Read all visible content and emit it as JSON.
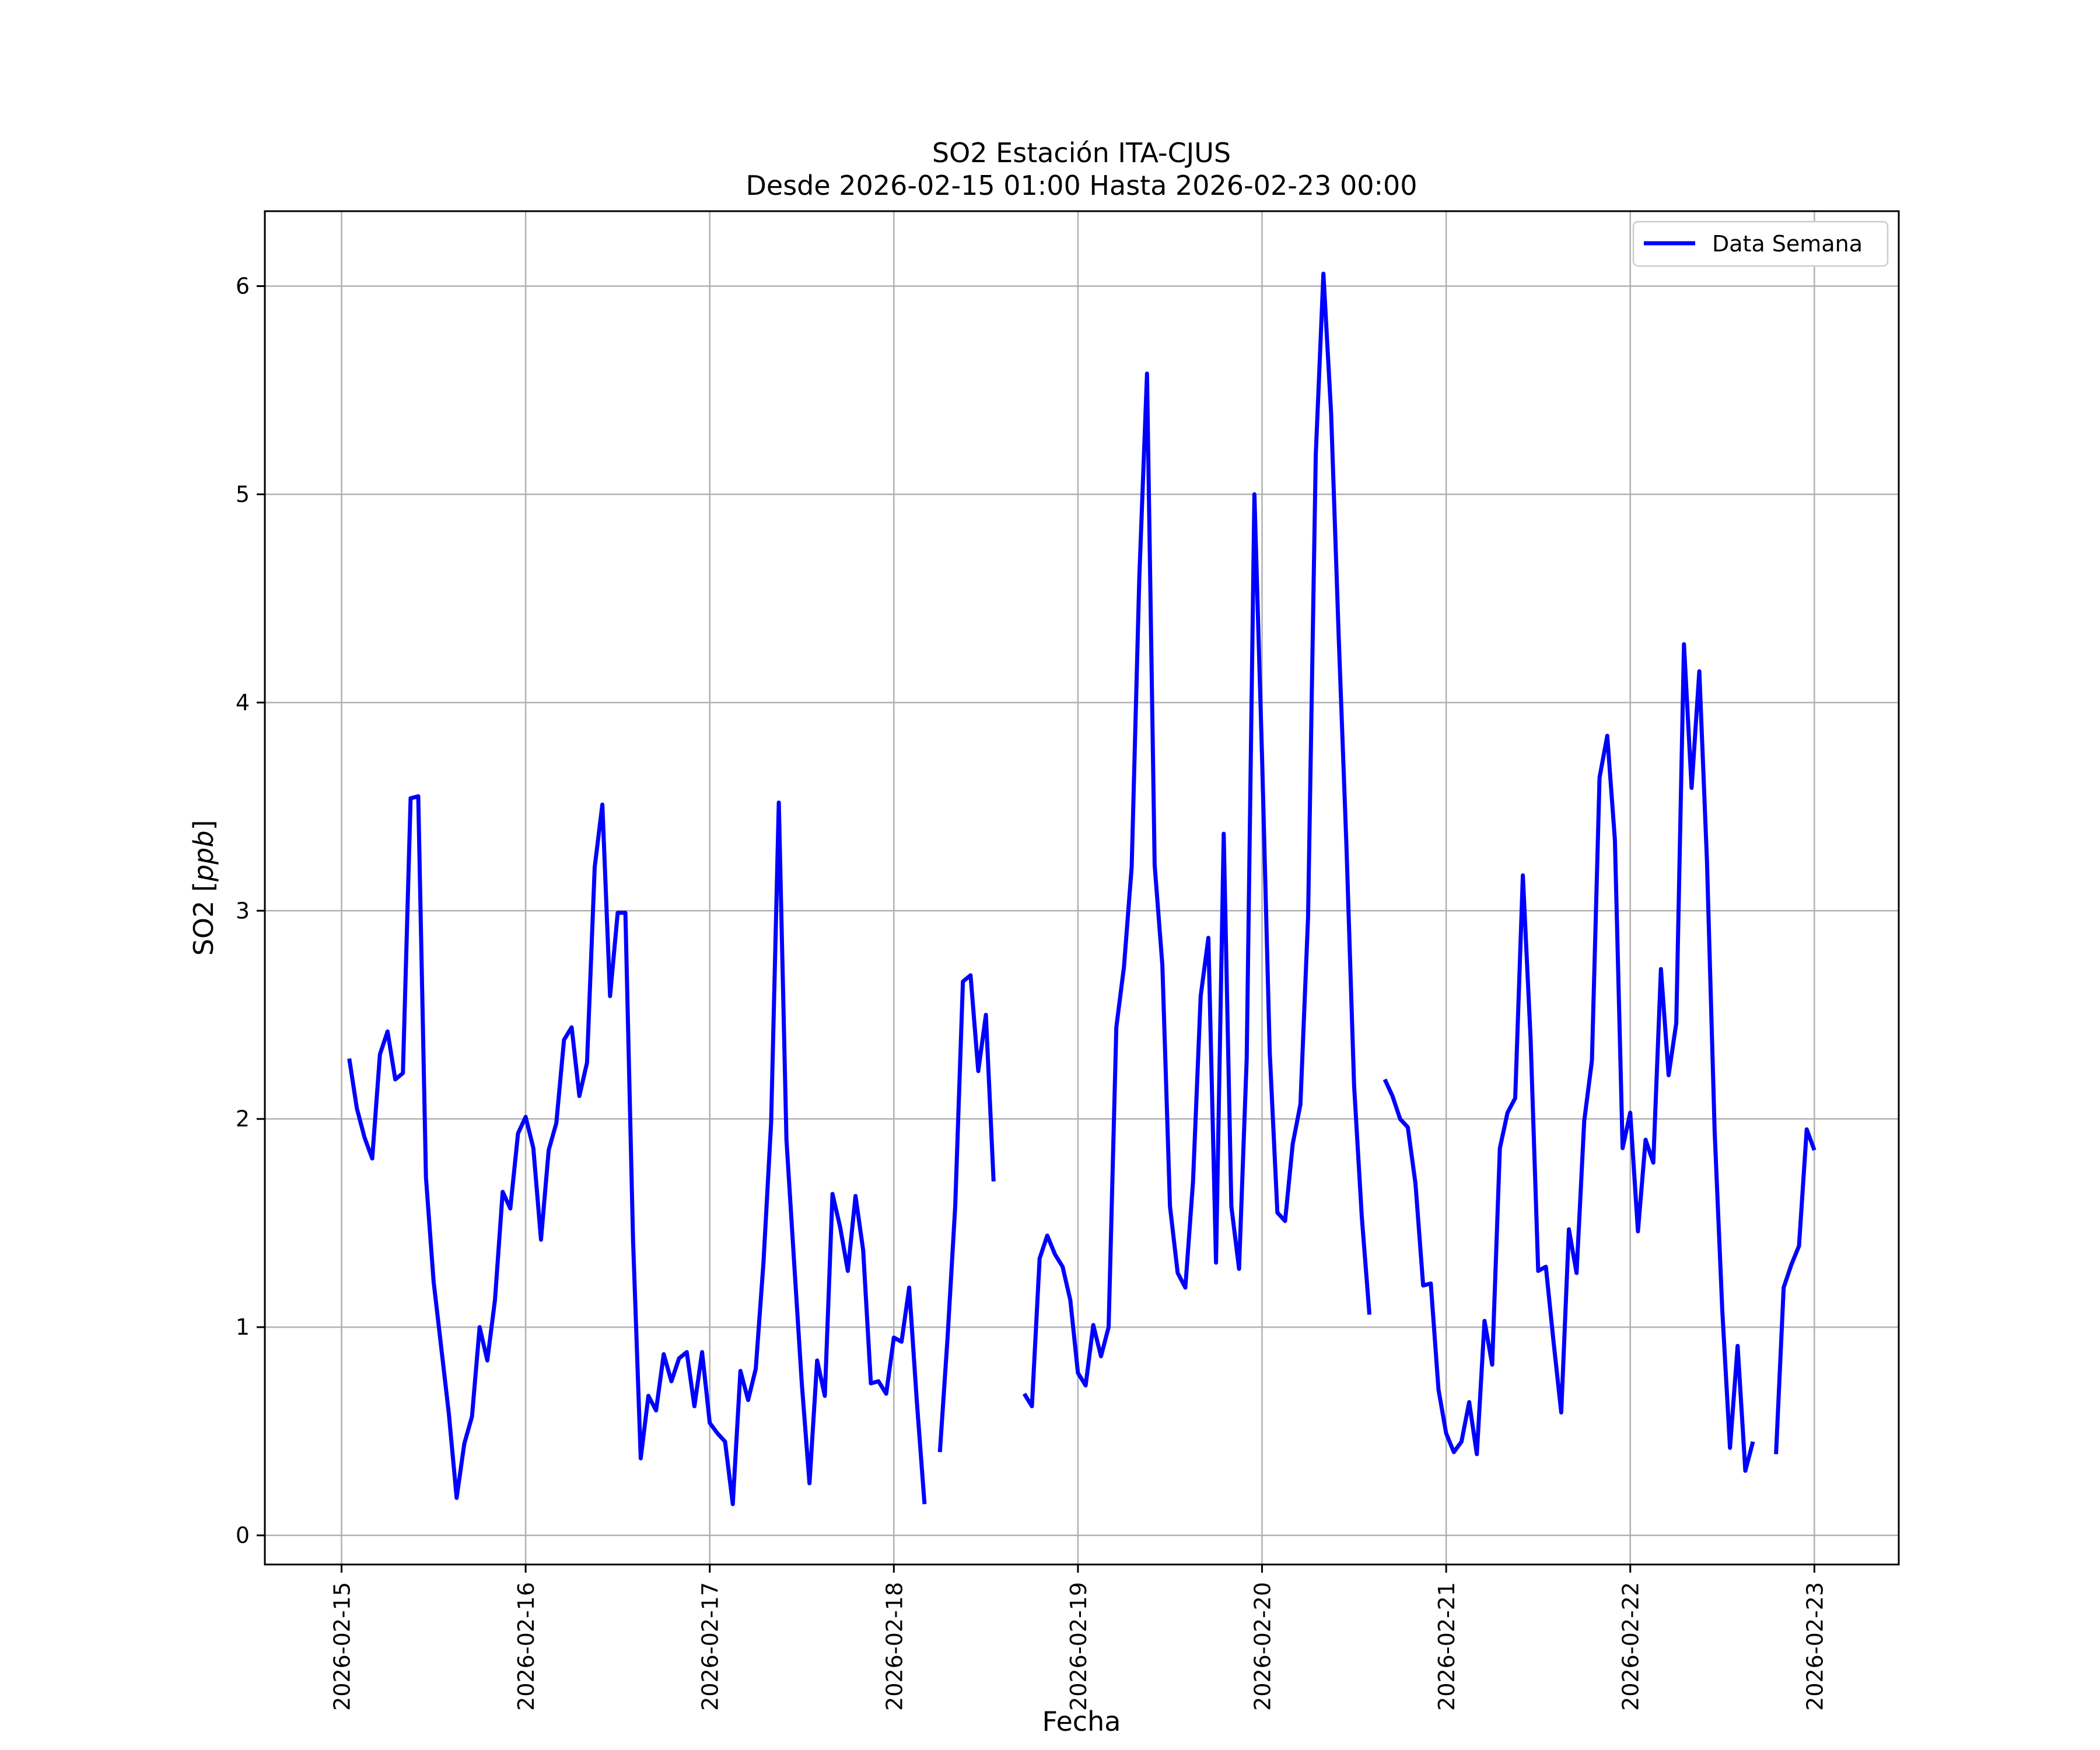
{
  "chart_data": {
    "type": "line",
    "title": "SO2 Estación ITA-CJUS",
    "subtitle": "Desde 2026-02-15 01:00 Hasta 2026-02-23 00:00",
    "xlabel": "Fecha",
    "ylabel": "SO2 [ppb]",
    "xlim": [
      "2026-02-14 14:00",
      "2026-02-23 11:00"
    ],
    "ylim": [
      -0.14,
      6.36
    ],
    "x_ticks": [
      "2026-02-15",
      "2026-02-16",
      "2026-02-17",
      "2026-02-18",
      "2026-02-19",
      "2026-02-20",
      "2026-02-21",
      "2026-02-22",
      "2026-02-23"
    ],
    "y_ticks": [
      0,
      1,
      2,
      3,
      4,
      5,
      6
    ],
    "grid": true,
    "legend": {
      "position": "top-right",
      "entries": [
        "Data Semana"
      ]
    },
    "colors": {
      "series": "#0000ff",
      "grid": "#b0b0b0",
      "frame": "#000000"
    },
    "series": [
      {
        "name": "Data Semana",
        "points": [
          [
            "2026-02-15 01:00",
            2.29
          ],
          [
            "2026-02-15 02:00",
            2.05
          ],
          [
            "2026-02-15 03:00",
            1.91
          ],
          [
            "2026-02-15 04:00",
            1.81
          ],
          [
            "2026-02-15 05:00",
            2.31
          ],
          [
            "2026-02-15 06:00",
            2.42
          ],
          [
            "2026-02-15 07:00",
            2.19
          ],
          [
            "2026-02-15 08:00",
            2.22
          ],
          [
            "2026-02-15 09:00",
            3.54
          ],
          [
            "2026-02-15 10:00",
            3.55
          ],
          [
            "2026-02-15 11:00",
            1.72
          ],
          [
            "2026-02-15 12:00",
            1.22
          ],
          [
            "2026-02-15 13:00",
            0.9
          ],
          [
            "2026-02-15 14:00",
            0.58
          ],
          [
            "2026-02-15 15:00",
            0.18
          ],
          [
            "2026-02-15 16:00",
            0.44
          ],
          [
            "2026-02-15 17:00",
            0.57
          ],
          [
            "2026-02-15 18:00",
            1.0
          ],
          [
            "2026-02-15 19:00",
            0.84
          ],
          [
            "2026-02-15 20:00",
            1.13
          ],
          [
            "2026-02-15 21:00",
            1.65
          ],
          [
            "2026-02-15 22:00",
            1.57
          ],
          [
            "2026-02-15 23:00",
            1.93
          ],
          [
            "2026-02-16 00:00",
            2.01
          ],
          [
            "2026-02-16 01:00",
            1.86
          ],
          [
            "2026-02-16 02:00",
            1.42
          ],
          [
            "2026-02-16 03:00",
            1.85
          ],
          [
            "2026-02-16 04:00",
            1.98
          ],
          [
            "2026-02-16 05:00",
            2.38
          ],
          [
            "2026-02-16 06:00",
            2.44
          ],
          [
            "2026-02-16 07:00",
            2.11
          ],
          [
            "2026-02-16 08:00",
            2.27
          ],
          [
            "2026-02-16 09:00",
            3.21
          ],
          [
            "2026-02-16 10:00",
            3.51
          ],
          [
            "2026-02-16 11:00",
            2.59
          ],
          [
            "2026-02-16 12:00",
            2.99
          ],
          [
            "2026-02-16 13:00",
            2.99
          ],
          [
            "2026-02-16 14:00",
            1.42
          ],
          [
            "2026-02-16 15:00",
            0.37
          ],
          [
            "2026-02-16 16:00",
            0.67
          ],
          [
            "2026-02-16 17:00",
            0.6
          ],
          [
            "2026-02-16 18:00",
            0.87
          ],
          [
            "2026-02-16 19:00",
            0.74
          ],
          [
            "2026-02-16 20:00",
            0.85
          ],
          [
            "2026-02-16 21:00",
            0.88
          ],
          [
            "2026-02-16 22:00",
            0.62
          ],
          [
            "2026-02-16 23:00",
            0.88
          ],
          [
            "2026-02-17 00:00",
            0.54
          ],
          [
            "2026-02-17 01:00",
            0.49
          ],
          [
            "2026-02-17 02:00",
            0.45
          ],
          [
            "2026-02-17 03:00",
            0.15
          ],
          [
            "2026-02-17 04:00",
            0.79
          ],
          [
            "2026-02-17 05:00",
            0.65
          ],
          [
            "2026-02-17 06:00",
            0.8
          ],
          [
            "2026-02-17 07:00",
            1.31
          ],
          [
            "2026-02-17 08:00",
            1.98
          ],
          [
            "2026-02-17 09:00",
            3.52
          ],
          [
            "2026-02-17 10:00",
            1.9
          ],
          [
            "2026-02-17 11:00",
            1.31
          ],
          [
            "2026-02-17 12:00",
            0.73
          ],
          [
            "2026-02-17 13:00",
            0.25
          ],
          [
            "2026-02-17 14:00",
            0.84
          ],
          [
            "2026-02-17 15:00",
            0.67
          ],
          [
            "2026-02-17 16:00",
            1.64
          ],
          [
            "2026-02-17 17:00",
            1.48
          ],
          [
            "2026-02-17 18:00",
            1.27
          ],
          [
            "2026-02-17 19:00",
            1.63
          ],
          [
            "2026-02-17 20:00",
            1.37
          ],
          [
            "2026-02-17 21:00",
            0.73
          ],
          [
            "2026-02-17 22:00",
            0.74
          ],
          [
            "2026-02-17 23:00",
            0.68
          ],
          [
            "2026-02-18 00:00",
            0.95
          ],
          [
            "2026-02-18 01:00",
            0.93
          ],
          [
            "2026-02-18 02:00",
            1.19
          ],
          [
            "2026-02-18 03:00",
            0.64
          ],
          [
            "2026-02-18 04:00",
            0.15
          ],
          null,
          [
            "2026-02-18 06:00",
            0.4
          ],
          [
            "2026-02-18 07:00",
            0.95
          ],
          [
            "2026-02-18 08:00",
            1.58
          ],
          [
            "2026-02-18 09:00",
            2.66
          ],
          [
            "2026-02-18 10:00",
            2.69
          ],
          [
            "2026-02-18 11:00",
            2.23
          ],
          [
            "2026-02-18 12:00",
            2.5
          ],
          [
            "2026-02-18 13:00",
            1.7
          ],
          null,
          [
            "2026-02-18 17:00",
            0.68
          ],
          [
            "2026-02-18 18:00",
            0.62
          ],
          [
            "2026-02-18 19:00",
            1.33
          ],
          [
            "2026-02-18 20:00",
            1.44
          ],
          [
            "2026-02-18 21:00",
            1.35
          ],
          [
            "2026-02-18 22:00",
            1.29
          ],
          [
            "2026-02-18 23:00",
            1.13
          ],
          [
            "2026-02-19 00:00",
            0.78
          ],
          [
            "2026-02-19 01:00",
            0.72
          ],
          [
            "2026-02-19 02:00",
            1.01
          ],
          [
            "2026-02-19 03:00",
            0.86
          ],
          [
            "2026-02-19 04:00",
            1.0
          ],
          [
            "2026-02-19 05:00",
            2.44
          ],
          [
            "2026-02-19 06:00",
            2.73
          ],
          [
            "2026-02-19 07:00",
            3.21
          ],
          [
            "2026-02-19 08:00",
            4.6
          ],
          [
            "2026-02-19 09:00",
            5.58
          ],
          [
            "2026-02-19 10:00",
            3.22
          ],
          [
            "2026-02-19 11:00",
            2.74
          ],
          [
            "2026-02-19 12:00",
            1.58
          ],
          [
            "2026-02-19 13:00",
            1.26
          ],
          [
            "2026-02-19 14:00",
            1.19
          ],
          [
            "2026-02-19 15:00",
            1.7
          ],
          [
            "2026-02-19 16:00",
            2.59
          ],
          [
            "2026-02-19 17:00",
            2.87
          ],
          [
            "2026-02-19 18:00",
            1.31
          ],
          [
            "2026-02-19 19:00",
            3.37
          ],
          [
            "2026-02-19 20:00",
            1.58
          ],
          [
            "2026-02-19 21:00",
            1.28
          ],
          [
            "2026-02-19 22:00",
            2.29
          ],
          [
            "2026-02-19 23:00",
            5.0
          ],
          [
            "2026-02-20 00:00",
            3.74
          ],
          [
            "2026-02-20 01:00",
            2.32
          ],
          [
            "2026-02-20 02:00",
            1.55
          ],
          [
            "2026-02-20 03:00",
            1.51
          ],
          [
            "2026-02-20 04:00",
            1.88
          ],
          [
            "2026-02-20 05:00",
            2.07
          ],
          [
            "2026-02-20 06:00",
            2.97
          ],
          [
            "2026-02-20 07:00",
            5.19
          ],
          [
            "2026-02-20 08:00",
            6.06
          ],
          [
            "2026-02-20 09:00",
            5.39
          ],
          [
            "2026-02-20 10:00",
            4.31
          ],
          [
            "2026-02-20 11:00",
            3.31
          ],
          [
            "2026-02-20 12:00",
            2.16
          ],
          [
            "2026-02-20 13:00",
            1.53
          ],
          [
            "2026-02-20 14:00",
            1.06
          ],
          null,
          [
            "2026-02-20 16:00",
            2.19
          ],
          [
            "2026-02-20 17:00",
            2.11
          ],
          [
            "2026-02-20 18:00",
            2.0
          ],
          [
            "2026-02-20 19:00",
            1.96
          ],
          [
            "2026-02-20 20:00",
            1.69
          ],
          [
            "2026-02-20 21:00",
            1.2
          ],
          [
            "2026-02-20 22:00",
            1.21
          ],
          [
            "2026-02-20 23:00",
            0.7
          ],
          [
            "2026-02-21 00:00",
            0.49
          ],
          [
            "2026-02-21 01:00",
            0.4
          ],
          [
            "2026-02-21 02:00",
            0.45
          ],
          [
            "2026-02-21 03:00",
            0.64
          ],
          [
            "2026-02-21 04:00",
            0.39
          ],
          [
            "2026-02-21 05:00",
            1.03
          ],
          [
            "2026-02-21 06:00",
            0.82
          ],
          [
            "2026-02-21 07:00",
            1.86
          ],
          [
            "2026-02-21 08:00",
            2.03
          ],
          [
            "2026-02-21 09:00",
            2.1
          ],
          [
            "2026-02-21 10:00",
            3.17
          ],
          [
            "2026-02-21 11:00",
            2.39
          ],
          [
            "2026-02-21 12:00",
            1.27
          ],
          [
            "2026-02-21 13:00",
            1.29
          ],
          [
            "2026-02-21 14:00",
            0.93
          ],
          [
            "2026-02-21 15:00",
            0.59
          ],
          [
            "2026-02-21 16:00",
            1.47
          ],
          [
            "2026-02-21 17:00",
            1.26
          ],
          [
            "2026-02-21 18:00",
            1.99
          ],
          [
            "2026-02-21 19:00",
            2.28
          ],
          [
            "2026-02-21 20:00",
            3.64
          ],
          [
            "2026-02-21 21:00",
            3.84
          ],
          [
            "2026-02-21 22:00",
            3.34
          ],
          [
            "2026-02-21 23:00",
            1.86
          ],
          [
            "2026-02-22 00:00",
            2.03
          ],
          [
            "2026-02-22 01:00",
            1.46
          ],
          [
            "2026-02-22 02:00",
            1.9
          ],
          [
            "2026-02-22 03:00",
            1.79
          ],
          [
            "2026-02-22 04:00",
            2.72
          ],
          [
            "2026-02-22 05:00",
            2.21
          ],
          [
            "2026-02-22 06:00",
            2.46
          ],
          [
            "2026-02-22 07:00",
            4.28
          ],
          [
            "2026-02-22 08:00",
            3.59
          ],
          [
            "2026-02-22 09:00",
            4.15
          ],
          [
            "2026-02-22 10:00",
            3.24
          ],
          [
            "2026-02-22 11:00",
            1.94
          ],
          [
            "2026-02-22 12:00",
            1.08
          ],
          [
            "2026-02-22 13:00",
            0.42
          ],
          [
            "2026-02-22 14:00",
            0.91
          ],
          [
            "2026-02-22 15:00",
            0.31
          ],
          [
            "2026-02-22 16:00",
            0.45
          ],
          null,
          [
            "2026-02-22 19:00",
            0.39
          ],
          [
            "2026-02-22 20:00",
            1.19
          ],
          [
            "2026-02-22 21:00",
            1.3
          ],
          [
            "2026-02-22 22:00",
            1.39
          ],
          [
            "2026-02-22 23:00",
            1.95
          ],
          [
            "2026-02-23 00:00",
            1.85
          ]
        ]
      }
    ]
  }
}
